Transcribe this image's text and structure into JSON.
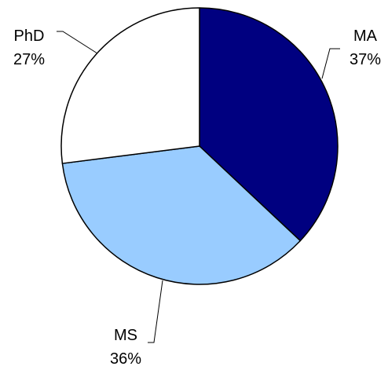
{
  "chart_data": {
    "type": "pie",
    "title": "",
    "start": "12 o'clock",
    "direction": "clockwise",
    "slices": [
      {
        "label": "MA",
        "value": 37,
        "percent_label": "37%",
        "color": "#000080"
      },
      {
        "label": "MS",
        "value": 36,
        "percent_label": "36%",
        "color": "#99ccff"
      },
      {
        "label": "PhD",
        "value": 27,
        "percent_label": "27%",
        "color": "#ffffff"
      }
    ],
    "slice_outline_color": "#000000",
    "leader_line_color": "#000000",
    "legend": "none"
  }
}
